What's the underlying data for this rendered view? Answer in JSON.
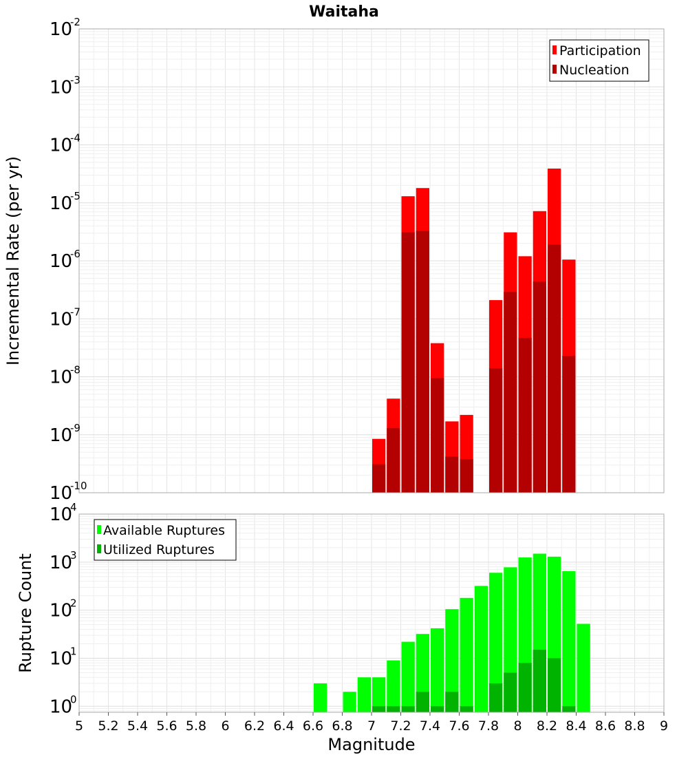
{
  "chart_data": [
    {
      "type": "bar",
      "title": "Waitaha",
      "ylabel": "Incremental Rate (per yr)",
      "yscale": "log",
      "ylim": [
        1e-10,
        0.01
      ],
      "xlim": [
        5,
        9
      ],
      "bar_width": 0.1,
      "grid": true,
      "legend_position": "top-right",
      "series": [
        {
          "name": "Participation",
          "color": "#ff0000",
          "x": [
            7.05,
            7.15,
            7.25,
            7.35,
            7.45,
            7.55,
            7.65,
            7.85,
            7.95,
            8.05,
            8.15,
            8.25,
            8.35
          ],
          "values": [
            8.5e-10,
            4.2e-09,
            1.3e-05,
            1.8e-05,
            3.8e-08,
            1.7e-09,
            2.2e-09,
            2.1e-07,
            3.1e-06,
            1.2e-06,
            7.2e-06,
            3.9e-05,
            1.05e-06
          ]
        },
        {
          "name": "Nucleation",
          "color": "#b30000",
          "x": [
            7.05,
            7.15,
            7.25,
            7.35,
            7.45,
            7.55,
            7.65,
            7.85,
            7.95,
            8.05,
            8.15,
            8.25,
            8.35
          ],
          "values": [
            3.1e-10,
            1.3e-09,
            3.1e-06,
            3.3e-06,
            9.5e-09,
            4.2e-10,
            3.8e-10,
            1.4e-08,
            2.9e-07,
            4.7e-08,
            4.4e-07,
            1.9e-06,
            2.3e-08
          ]
        }
      ]
    },
    {
      "type": "bar",
      "xlabel": "Magnitude",
      "ylabel": "Rupture Count",
      "yscale": "log",
      "ylim": [
        0.75,
        10000
      ],
      "xlim": [
        5,
        9
      ],
      "bar_width": 0.1,
      "grid": true,
      "legend_position": "top-left",
      "x_ticks": [
        "5",
        "5.2",
        "5.4",
        "5.6",
        "5.8",
        "6",
        "6.2",
        "6.4",
        "6.6",
        "6.8",
        "7",
        "7.2",
        "7.4",
        "7.6",
        "7.8",
        "8",
        "8.2",
        "8.4",
        "8.6",
        "8.8",
        "9"
      ],
      "series": [
        {
          "name": "Available Ruptures",
          "color": "#00ff00",
          "x": [
            6.65,
            6.85,
            6.95,
            7.05,
            7.15,
            7.25,
            7.35,
            7.45,
            7.55,
            7.65,
            7.75,
            7.85,
            7.95,
            8.05,
            8.15,
            8.25,
            8.35,
            8.45
          ],
          "values": [
            3,
            2,
            4,
            4,
            9,
            22,
            32,
            42,
            105,
            180,
            320,
            600,
            780,
            1250,
            1500,
            1300,
            650,
            52
          ]
        },
        {
          "name": "Utilized Ruptures",
          "color": "#00b300",
          "x": [
            7.05,
            7.15,
            7.25,
            7.35,
            7.45,
            7.55,
            7.65,
            7.85,
            7.95,
            8.05,
            8.15,
            8.25,
            8.35
          ],
          "values": [
            1,
            1,
            1,
            2,
            1,
            2,
            1,
            3,
            5,
            8,
            15,
            10,
            1
          ]
        }
      ]
    }
  ],
  "ticks": {
    "top_y": [
      {
        "base": "10",
        "exp": "-10"
      },
      {
        "base": "10",
        "exp": "-9"
      },
      {
        "base": "10",
        "exp": "-8"
      },
      {
        "base": "10",
        "exp": "-7"
      },
      {
        "base": "10",
        "exp": "-6"
      },
      {
        "base": "10",
        "exp": "-5"
      },
      {
        "base": "10",
        "exp": "-4"
      },
      {
        "base": "10",
        "exp": "-3"
      },
      {
        "base": "10",
        "exp": "-2"
      }
    ],
    "bottom_y": [
      {
        "base": "10",
        "exp": "0"
      },
      {
        "base": "10",
        "exp": "1"
      },
      {
        "base": "10",
        "exp": "2"
      },
      {
        "base": "10",
        "exp": "3"
      },
      {
        "base": "10",
        "exp": "4"
      }
    ]
  }
}
